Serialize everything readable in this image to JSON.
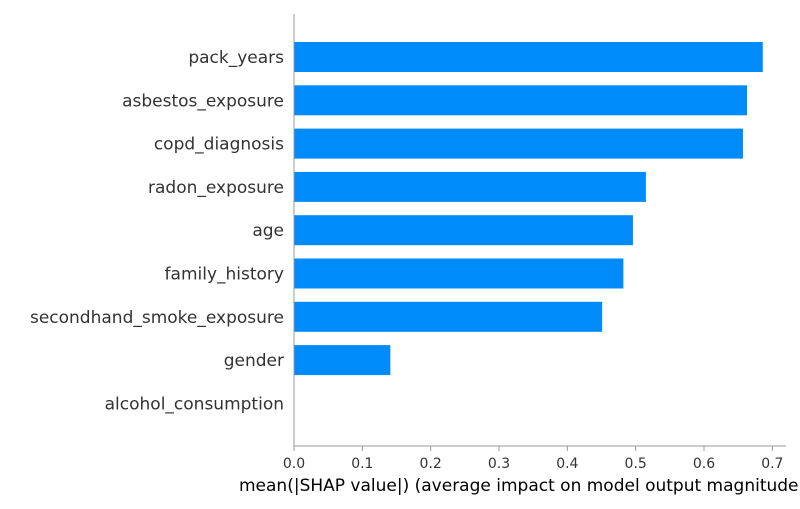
{
  "chart_data": {
    "type": "bar",
    "orientation": "horizontal",
    "categories": [
      "pack_years",
      "asbestos_exposure",
      "copd_diagnosis",
      "radon_exposure",
      "age",
      "family_history",
      "secondhand_smoke_exposure",
      "gender",
      "alcohol_consumption"
    ],
    "values": [
      0.686,
      0.663,
      0.657,
      0.515,
      0.496,
      0.482,
      0.451,
      0.141,
      0.0
    ],
    "xlabel": "mean(|SHAP value|) (average impact on model output magnitude)",
    "xlim": [
      0.0,
      0.72
    ],
    "xticks": [
      0.0,
      0.1,
      0.2,
      0.3,
      0.4,
      0.5,
      0.6,
      0.7
    ],
    "xtick_labels": [
      "0.0",
      "0.1",
      "0.2",
      "0.3",
      "0.4",
      "0.5",
      "0.6",
      "0.7"
    ],
    "grid": false,
    "bar_color": "#008bfb",
    "axis_color": "#999999"
  }
}
